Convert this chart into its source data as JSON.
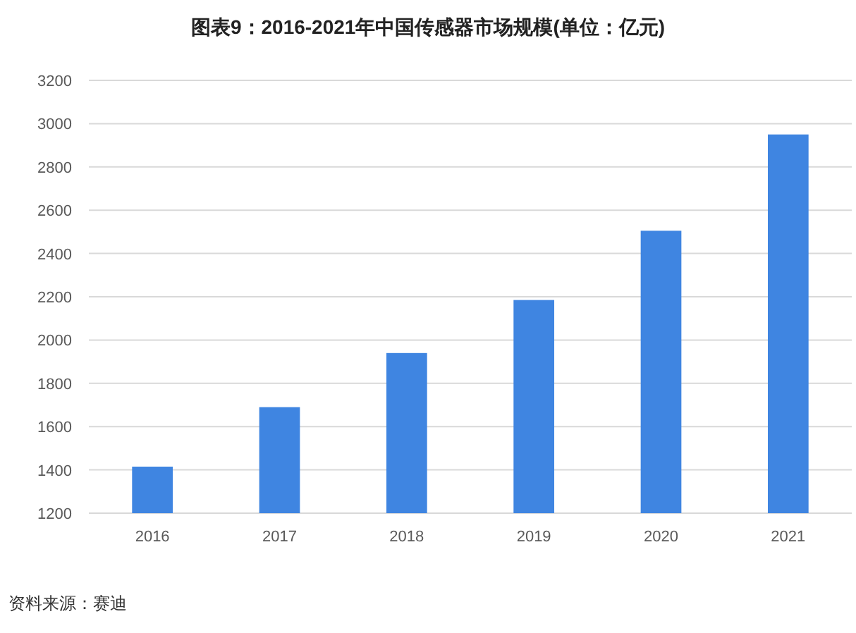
{
  "chart_data": {
    "type": "bar",
    "title": "图表9：2016-2021年中国传感器市场规模(单位：亿元)",
    "categories": [
      "2016",
      "2017",
      "2018",
      "2019",
      "2020",
      "2021"
    ],
    "values": [
      1415,
      1690,
      1940,
      2185,
      2505,
      2950
    ],
    "color": "#3f85e1",
    "ylim": [
      1200,
      3200
    ],
    "yticks": [
      1200,
      1400,
      1600,
      1800,
      2000,
      2200,
      2400,
      2600,
      2800,
      3000,
      3200
    ],
    "grid": "y",
    "annotations": [
      "资料来源：赛迪"
    ]
  }
}
